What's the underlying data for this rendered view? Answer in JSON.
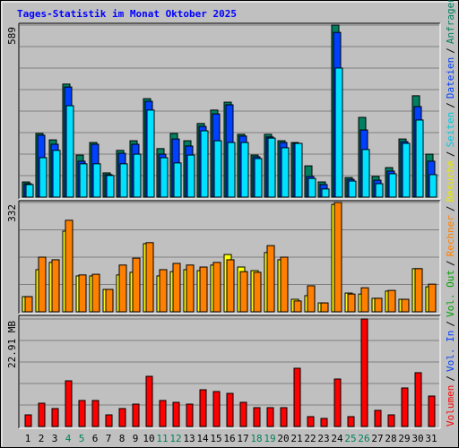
{
  "legend_separator": "/",
  "chart_data": [
    {
      "type": "bar",
      "title": "Tages-Statistik im Monat Oktober 2025",
      "ylim": [
        0,
        589
      ],
      "yticks": [
        589
      ],
      "series": [
        {
          "name": "Anfragen",
          "color": "#008060",
          "label_color": "#00805c",
          "values": [
            52,
            218,
            196,
            387,
            144,
            187,
            83,
            160,
            193,
            337,
            166,
            218,
            193,
            252,
            298,
            325,
            215,
            144,
            215,
            193,
            187,
            107,
            52,
            589,
            67,
            273,
            71,
            101,
            199,
            347,
            147
          ]
        },
        {
          "name": "Dateien",
          "color": "#0040ff",
          "label_color": "#0040ff",
          "values": [
            46,
            212,
            181,
            377,
            123,
            181,
            77,
            150,
            181,
            328,
            147,
            199,
            175,
            242,
            285,
            316,
            209,
            138,
            206,
            187,
            184,
            71,
            43,
            564,
            61,
            230,
            58,
            89,
            190,
            310,
            123
          ]
        },
        {
          "name": "Seiten",
          "color": "#00e0ff",
          "label_color": "#00c8e0",
          "values": [
            43,
            135,
            160,
            313,
            114,
            114,
            74,
            114,
            147,
            298,
            135,
            117,
            144,
            227,
            193,
            187,
            187,
            132,
            202,
            169,
            184,
            64,
            28,
            442,
            55,
            163,
            46,
            80,
            184,
            264,
            77
          ]
        }
      ]
    },
    {
      "type": "bar",
      "ylim": [
        0,
        332
      ],
      "yticks": [
        332
      ],
      "series": [
        {
          "name": "Besuche",
          "color": "#ffff00",
          "label_color": "#e8e800",
          "values": [
            46,
            128,
            150,
            245,
            109,
            109,
            68,
            112,
            120,
            207,
            109,
            122,
            128,
            125,
            142,
            174,
            136,
            125,
            180,
            158,
            38,
            49,
            27,
            326,
            57,
            54,
            41,
            63,
            38,
            131,
            76
          ]
        },
        {
          "name": "Rechner",
          "color": "#ff8000",
          "label_color": "#ff8000",
          "values": [
            46,
            166,
            158,
            278,
            112,
            114,
            68,
            142,
            163,
            210,
            128,
            147,
            142,
            136,
            150,
            158,
            122,
            120,
            201,
            166,
            33,
            79,
            27,
            332,
            54,
            73,
            41,
            65,
            38,
            131,
            84
          ]
        }
      ]
    },
    {
      "type": "bar",
      "ylim": [
        0,
        22.91
      ],
      "yticks": [
        {
          "value": 22.91,
          "label": "22.91 MB"
        }
      ],
      "categories": [
        "1",
        "2",
        "3",
        "4",
        "5",
        "6",
        "7",
        "8",
        "9",
        "10",
        "11",
        "12",
        "13",
        "14",
        "15",
        "16",
        "17",
        "18",
        "19",
        "20",
        "21",
        "22",
        "23",
        "24",
        "25",
        "26",
        "27",
        "28",
        "29",
        "30",
        "31"
      ],
      "category_colors": [
        "#000000",
        "#000000",
        "#000000",
        "#00805c",
        "#00805c",
        "#000000",
        "#000000",
        "#000000",
        "#000000",
        "#000000",
        "#00805c",
        "#00805c",
        "#000000",
        "#000000",
        "#000000",
        "#000000",
        "#000000",
        "#00805c",
        "#00805c",
        "#000000",
        "#000000",
        "#000000",
        "#000000",
        "#000000",
        "#00805c",
        "#00805c",
        "#000000",
        "#000000",
        "#000000",
        "#000000",
        "#000000"
      ],
      "series": [
        {
          "name": "Volumen",
          "color": "#ff0000",
          "label_color": "#ff0000",
          "values": [
            2.48,
            4.96,
            3.82,
            9.74,
            5.54,
            5.54,
            2.48,
            3.82,
            4.77,
            10.69,
            5.54,
            5.15,
            4.77,
            7.83,
            7.45,
            7.06,
            5.15,
            4.01,
            4.01,
            4.01,
            12.41,
            2.1,
            1.72,
            10.12,
            2.1,
            22.91,
            3.44,
            2.48,
            8.21,
            11.46,
            6.49
          ]
        },
        {
          "name": "Vol. In",
          "color": "#0040ff",
          "label_color": "#0040ff",
          "values": [
            null,
            null,
            null,
            null,
            null,
            null,
            null,
            null,
            null,
            null,
            null,
            null,
            null,
            null,
            null,
            null,
            null,
            null,
            null,
            null,
            null,
            null,
            null,
            null,
            null,
            null,
            null,
            null,
            null,
            null,
            null
          ]
        },
        {
          "name": "Vol. Out",
          "color": "#00c000",
          "label_color": "#00a000",
          "values": [
            null,
            null,
            null,
            null,
            null,
            null,
            null,
            null,
            null,
            null,
            null,
            null,
            null,
            null,
            null,
            null,
            null,
            null,
            null,
            null,
            null,
            null,
            null,
            null,
            null,
            null,
            null,
            null,
            null,
            null,
            null
          ]
        }
      ]
    }
  ]
}
